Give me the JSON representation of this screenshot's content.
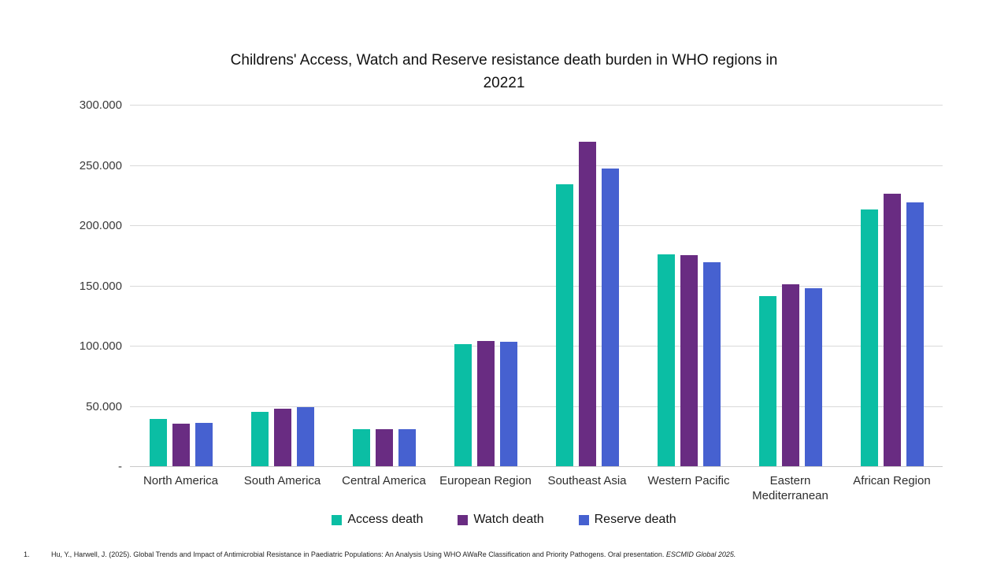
{
  "chart_data": {
    "type": "bar",
    "title": "Childrens' Access, Watch and Reserve resistance death burden in WHO regions in 20221",
    "title_line1": "Childrens' Access, Watch and Reserve resistance death burden in WHO regions in",
    "title_line2": "20221",
    "categories": [
      "North America",
      "South America",
      "Central America",
      "European Region",
      "Southeast Asia",
      "Western Pacific",
      "Eastern Mediterranean",
      "African Region"
    ],
    "series": [
      {
        "name": "Access death",
        "color": "#0bbea4",
        "values": [
          39000,
          45000,
          31000,
          101000,
          234000,
          176000,
          141000,
          213000
        ]
      },
      {
        "name": "Watch death",
        "color": "#692c82",
        "values": [
          35000,
          48000,
          31000,
          104000,
          269000,
          175000,
          151000,
          226000
        ]
      },
      {
        "name": "Reserve death",
        "color": "#4661d0",
        "values": [
          36000,
          49000,
          31000,
          103000,
          247000,
          169000,
          148000,
          219000
        ]
      }
    ],
    "y_axis": {
      "min": 0,
      "max": 300000,
      "tick_interval": 50000,
      "tick_labels": [
        "-",
        "50.000",
        "100.000",
        "150.000",
        "200.000",
        "250.000",
        "300.000"
      ]
    },
    "grid": true,
    "legend_position": "bottom",
    "xlabel": "",
    "ylabel": ""
  },
  "footnote": {
    "number": "1.",
    "text": "Hu, Y., Harwell, J. (2025). Global Trends and Impact of Antimicrobial Resistance in Paediatric Populations: An Analysis Using WHO AWaRe Classification and Priority Pathogens. Oral presentation.",
    "italic": "ESCMID Global 2025."
  }
}
